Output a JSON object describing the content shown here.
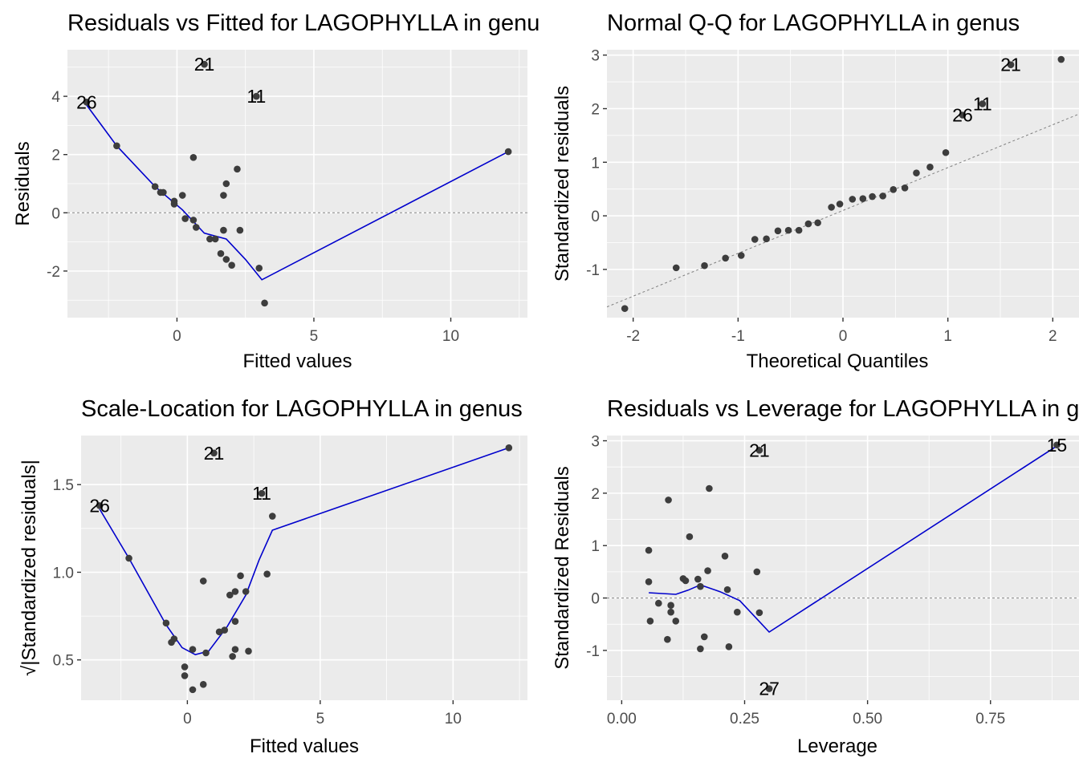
{
  "colors": {
    "point": "#3d3d3d",
    "smooth": "#0000cc",
    "reference": "#808080",
    "panel_bg": "#ebebeb"
  },
  "chart_data": [
    {
      "id": "resid-fitted",
      "type": "scatter",
      "title": "Residuals vs Fitted for LAGOPHYLLA in genus",
      "xlabel": "Fitted values",
      "ylabel": "Residuals",
      "xlim": [
        -4.0,
        12.8
      ],
      "ylim": [
        -3.6,
        5.6
      ],
      "xticks": [
        0,
        5,
        10
      ],
      "xtick_labels": [
        "0",
        "5",
        "10"
      ],
      "yticks": [
        -2,
        0,
        2,
        4
      ],
      "ytick_labels": [
        "-2",
        "0",
        "2",
        "4"
      ],
      "xminor": [
        -2.5,
        2.5,
        7.5,
        12.5
      ],
      "yminor": [
        -3,
        -1,
        1,
        3,
        5
      ],
      "refline": {
        "kind": "h",
        "value": 0
      },
      "points": [
        {
          "x": -3.3,
          "y": 3.8
        },
        {
          "x": 1.0,
          "y": 5.1
        },
        {
          "x": 2.9,
          "y": 4.0
        },
        {
          "x": -2.2,
          "y": 2.3
        },
        {
          "x": 0.6,
          "y": 1.9
        },
        {
          "x": 2.2,
          "y": 1.5
        },
        {
          "x": 1.8,
          "y": 1.0
        },
        {
          "x": 1.7,
          "y": 0.6
        },
        {
          "x": -0.8,
          "y": 0.9
        },
        {
          "x": -0.6,
          "y": 0.7
        },
        {
          "x": -0.5,
          "y": 0.7
        },
        {
          "x": 0.2,
          "y": 0.6
        },
        {
          "x": -0.1,
          "y": 0.4
        },
        {
          "x": -0.1,
          "y": 0.3
        },
        {
          "x": 0.3,
          "y": -0.2
        },
        {
          "x": 0.6,
          "y": -0.25
        },
        {
          "x": 0.7,
          "y": -0.5
        },
        {
          "x": 1.7,
          "y": -0.6
        },
        {
          "x": 2.3,
          "y": -0.6
        },
        {
          "x": 1.2,
          "y": -0.9
        },
        {
          "x": 1.4,
          "y": -0.9
        },
        {
          "x": 1.6,
          "y": -1.4
        },
        {
          "x": 1.8,
          "y": -1.6
        },
        {
          "x": 2.0,
          "y": -1.8
        },
        {
          "x": 3.0,
          "y": -1.9
        },
        {
          "x": 3.2,
          "y": -3.1
        },
        {
          "x": 12.1,
          "y": 2.1
        }
      ],
      "smooth": [
        {
          "x": -3.3,
          "y": 3.7
        },
        {
          "x": -2.2,
          "y": 2.3
        },
        {
          "x": -0.8,
          "y": 0.9
        },
        {
          "x": 0.2,
          "y": 0.1
        },
        {
          "x": 1.0,
          "y": -0.7
        },
        {
          "x": 1.8,
          "y": -0.9
        },
        {
          "x": 2.5,
          "y": -1.6
        },
        {
          "x": 3.1,
          "y": -2.3
        },
        {
          "x": 12.1,
          "y": 2.1
        }
      ],
      "labels": [
        {
          "text": "26",
          "x": -3.3,
          "y": 3.8
        },
        {
          "text": "21",
          "x": 1.0,
          "y": 5.1
        },
        {
          "text": "11",
          "x": 2.9,
          "y": 4.0
        }
      ]
    },
    {
      "id": "normal-qq",
      "type": "scatter",
      "title": "Normal Q-Q for LAGOPHYLLA in genus",
      "xlabel": "Theoretical Quantiles",
      "ylabel": "Standardized residuals",
      "xlim": [
        -2.25,
        2.25
      ],
      "ylim": [
        -1.9,
        3.1
      ],
      "xticks": [
        -2,
        -1,
        0,
        1,
        2
      ],
      "xtick_labels": [
        "-2",
        "-1",
        "0",
        "1",
        "2"
      ],
      "yticks": [
        -1,
        0,
        1,
        2,
        3
      ],
      "ytick_labels": [
        "-1",
        "0",
        "1",
        "2",
        "3"
      ],
      "xminor": [
        -1.5,
        -0.5,
        0.5,
        1.5
      ],
      "yminor": [
        -1.5,
        -0.5,
        0.5,
        1.5,
        2.5
      ],
      "refline": {
        "kind": "ab",
        "intercept": 0.1,
        "slope": 0.8
      },
      "points": [
        {
          "x": -2.08,
          "y": -1.73
        },
        {
          "x": -1.59,
          "y": -0.97
        },
        {
          "x": -1.32,
          "y": -0.93
        },
        {
          "x": -1.12,
          "y": -0.79
        },
        {
          "x": -0.97,
          "y": -0.74
        },
        {
          "x": -0.84,
          "y": -0.44
        },
        {
          "x": -0.73,
          "y": -0.43
        },
        {
          "x": -0.62,
          "y": -0.28
        },
        {
          "x": -0.52,
          "y": -0.27
        },
        {
          "x": -0.42,
          "y": -0.27
        },
        {
          "x": -0.33,
          "y": -0.15
        },
        {
          "x": -0.24,
          "y": -0.13
        },
        {
          "x": -0.11,
          "y": 0.16
        },
        {
          "x": -0.03,
          "y": 0.22
        },
        {
          "x": 0.09,
          "y": 0.31
        },
        {
          "x": 0.19,
          "y": 0.32
        },
        {
          "x": 0.28,
          "y": 0.36
        },
        {
          "x": 0.38,
          "y": 0.37
        },
        {
          "x": 0.48,
          "y": 0.49
        },
        {
          "x": 0.59,
          "y": 0.52
        },
        {
          "x": 0.7,
          "y": 0.8
        },
        {
          "x": 0.83,
          "y": 0.91
        },
        {
          "x": 0.98,
          "y": 1.18
        },
        {
          "x": 1.14,
          "y": 1.88
        },
        {
          "x": 1.33,
          "y": 2.09
        },
        {
          "x": 1.6,
          "y": 2.82
        },
        {
          "x": 2.08,
          "y": 2.92
        }
      ],
      "labels": [
        {
          "text": "21",
          "x": 1.6,
          "y": 2.82
        },
        {
          "text": "26",
          "x": 1.14,
          "y": 1.88
        },
        {
          "text": "11",
          "x": 1.33,
          "y": 2.09
        }
      ]
    },
    {
      "id": "scale-location",
      "type": "scatter",
      "title": "Scale-Location for LAGOPHYLLA in genus",
      "xlabel": "Fitted values",
      "ylabel": "√|Standardized residuals|",
      "xlim": [
        -4.0,
        12.8
      ],
      "ylim": [
        0.27,
        1.78
      ],
      "xticks": [
        0,
        5,
        10
      ],
      "xtick_labels": [
        "0",
        "5",
        "10"
      ],
      "yticks": [
        0.5,
        1.0,
        1.5
      ],
      "ytick_labels": [
        "0.5",
        "1.0",
        "1.5"
      ],
      "xminor": [
        -2.5,
        2.5,
        7.5,
        12.5
      ],
      "yminor": [
        0.75,
        1.25
      ],
      "points": [
        {
          "x": -3.3,
          "y": 1.38
        },
        {
          "x": 1.0,
          "y": 1.68
        },
        {
          "x": 2.8,
          "y": 1.45
        },
        {
          "x": 3.2,
          "y": 1.32
        },
        {
          "x": -2.2,
          "y": 1.08
        },
        {
          "x": 3.0,
          "y": 0.99
        },
        {
          "x": 0.6,
          "y": 0.95
        },
        {
          "x": -0.8,
          "y": 0.71
        },
        {
          "x": -0.6,
          "y": 0.6
        },
        {
          "x": -0.5,
          "y": 0.62
        },
        {
          "x": 0.2,
          "y": 0.56
        },
        {
          "x": -0.1,
          "y": 0.46
        },
        {
          "x": -0.1,
          "y": 0.41
        },
        {
          "x": 0.2,
          "y": 0.33
        },
        {
          "x": 0.6,
          "y": 0.36
        },
        {
          "x": 0.7,
          "y": 0.54
        },
        {
          "x": 1.2,
          "y": 0.66
        },
        {
          "x": 1.4,
          "y": 0.67
        },
        {
          "x": 1.6,
          "y": 0.87
        },
        {
          "x": 1.8,
          "y": 0.89
        },
        {
          "x": 2.0,
          "y": 0.98
        },
        {
          "x": 2.2,
          "y": 0.89
        },
        {
          "x": 1.8,
          "y": 0.72
        },
        {
          "x": 1.7,
          "y": 0.52
        },
        {
          "x": 1.8,
          "y": 0.56
        },
        {
          "x": 2.3,
          "y": 0.55
        },
        {
          "x": 12.1,
          "y": 1.71
        }
      ],
      "smooth": [
        {
          "x": -3.3,
          "y": 1.36
        },
        {
          "x": -2.2,
          "y": 1.08
        },
        {
          "x": -0.8,
          "y": 0.7
        },
        {
          "x": -0.2,
          "y": 0.57
        },
        {
          "x": 0.3,
          "y": 0.53
        },
        {
          "x": 0.8,
          "y": 0.55
        },
        {
          "x": 1.5,
          "y": 0.69
        },
        {
          "x": 2.2,
          "y": 0.87
        },
        {
          "x": 2.7,
          "y": 1.07
        },
        {
          "x": 3.2,
          "y": 1.24
        },
        {
          "x": 12.1,
          "y": 1.71
        }
      ],
      "labels": [
        {
          "text": "26",
          "x": -3.3,
          "y": 1.38
        },
        {
          "text": "21",
          "x": 1.0,
          "y": 1.68
        },
        {
          "text": "11",
          "x": 2.8,
          "y": 1.45
        }
      ]
    },
    {
      "id": "resid-leverage",
      "type": "scatter",
      "title": "Residuals vs Leverage for LAGOPHYLLA in genus",
      "xlabel": "Leverage",
      "ylabel": "Standardized Residuals",
      "xlim": [
        -0.03,
        0.93
      ],
      "ylim": [
        -1.95,
        3.1
      ],
      "xticks": [
        0.0,
        0.25,
        0.5,
        0.75
      ],
      "xtick_labels": [
        "0.00",
        "0.25",
        "0.50",
        "0.75"
      ],
      "yticks": [
        -1,
        0,
        1,
        2,
        3
      ],
      "ytick_labels": [
        "-1",
        "0",
        "1",
        "2",
        "3"
      ],
      "xminor": [
        0.125,
        0.375,
        0.625,
        0.875
      ],
      "yminor": [
        -1.5,
        -0.5,
        0.5,
        1.5,
        2.5
      ],
      "refline": {
        "kind": "h",
        "value": 0
      },
      "points": [
        {
          "x": 0.055,
          "y": 0.91
        },
        {
          "x": 0.055,
          "y": 0.31
        },
        {
          "x": 0.058,
          "y": -0.44
        },
        {
          "x": 0.075,
          "y": -0.1
        },
        {
          "x": 0.095,
          "y": 1.87
        },
        {
          "x": 0.093,
          "y": -0.79
        },
        {
          "x": 0.1,
          "y": -0.27
        },
        {
          "x": 0.1,
          "y": -0.14
        },
        {
          "x": 0.11,
          "y": -0.44
        },
        {
          "x": 0.125,
          "y": 0.37
        },
        {
          "x": 0.13,
          "y": 0.33
        },
        {
          "x": 0.138,
          "y": 1.17
        },
        {
          "x": 0.155,
          "y": 0.36
        },
        {
          "x": 0.16,
          "y": 0.22
        },
        {
          "x": 0.16,
          "y": -0.97
        },
        {
          "x": 0.168,
          "y": -0.74
        },
        {
          "x": 0.175,
          "y": 0.52
        },
        {
          "x": 0.178,
          "y": 2.09
        },
        {
          "x": 0.21,
          "y": 0.8
        },
        {
          "x": 0.215,
          "y": 0.16
        },
        {
          "x": 0.218,
          "y": -0.93
        },
        {
          "x": 0.235,
          "y": -0.27
        },
        {
          "x": 0.275,
          "y": 0.5
        },
        {
          "x": 0.28,
          "y": -0.28
        },
        {
          "x": 0.28,
          "y": 2.82
        },
        {
          "x": 0.3,
          "y": -1.73
        },
        {
          "x": 0.885,
          "y": 2.92
        }
      ],
      "smooth": [
        {
          "x": 0.055,
          "y": 0.1
        },
        {
          "x": 0.11,
          "y": 0.07
        },
        {
          "x": 0.135,
          "y": 0.15
        },
        {
          "x": 0.16,
          "y": 0.25
        },
        {
          "x": 0.2,
          "y": 0.12
        },
        {
          "x": 0.24,
          "y": -0.05
        },
        {
          "x": 0.27,
          "y": -0.35
        },
        {
          "x": 0.3,
          "y": -0.65
        },
        {
          "x": 0.885,
          "y": 2.9
        }
      ],
      "labels": [
        {
          "text": "21",
          "x": 0.28,
          "y": 2.82
        },
        {
          "text": "15",
          "x": 0.885,
          "y": 2.92
        },
        {
          "text": "27",
          "x": 0.3,
          "y": -1.73
        }
      ]
    }
  ]
}
